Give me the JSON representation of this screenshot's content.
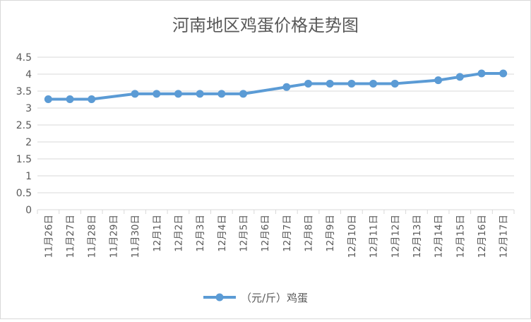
{
  "chart_data": {
    "type": "line",
    "title": "河南地区鸡蛋价格走势图",
    "xlabel": "",
    "ylabel": "",
    "categories": [
      "11月26日",
      "11月27日",
      "11月28日",
      "11月29日",
      "11月30日",
      "12月1日",
      "12月2日",
      "12月3日",
      "12月4日",
      "12月5日",
      "12月6日",
      "12月7日",
      "12月8日",
      "12月9日",
      "12月10日",
      "12月11日",
      "12月12日",
      "12月13日",
      "12月14日",
      "12月15日",
      "12月16日",
      "12月17日"
    ],
    "series": [
      {
        "name": "（元/斤）鸡蛋",
        "values": [
          3.26,
          3.26,
          3.26,
          null,
          3.42,
          3.42,
          3.42,
          3.42,
          3.42,
          3.42,
          null,
          3.62,
          3.72,
          3.72,
          3.72,
          3.72,
          3.72,
          null,
          3.82,
          3.92,
          4.02,
          4.02
        ]
      }
    ],
    "yticks": [
      "0",
      "0.5",
      "1",
      "1.5",
      "2",
      "2.5",
      "3",
      "3.5",
      "4",
      "4.5"
    ],
    "ylim": [
      0,
      4.5
    ],
    "grid": true,
    "legend_position": "bottom",
    "colors": {
      "series": "#5b9bd5",
      "grid": "#d9d9d9",
      "text": "#595959"
    }
  }
}
